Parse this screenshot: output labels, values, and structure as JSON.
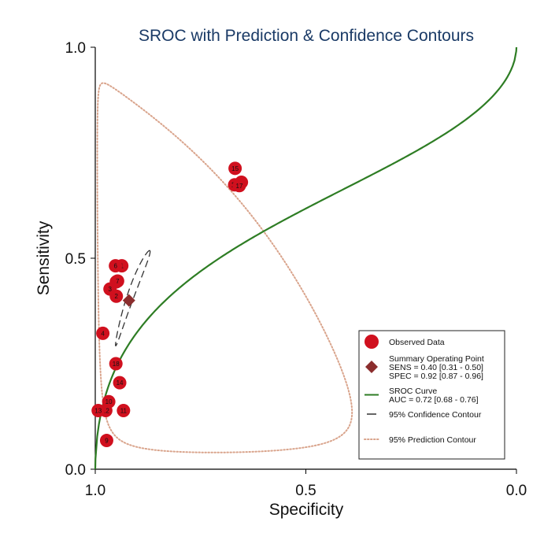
{
  "chart_data": {
    "type": "scatter",
    "title": "SROC with Prediction & Confidence Contours",
    "xlabel": "Specificity",
    "ylabel": "Sensitivity",
    "x_reversed": true,
    "xlim": [
      1.0,
      0.0
    ],
    "ylim": [
      0.0,
      1.0
    ],
    "xticks": [
      "1.0",
      "0.5",
      "0.0"
    ],
    "yticks": [
      "0.0",
      "0.5",
      "1.0"
    ],
    "grid": false,
    "legend_position": "bottom-right",
    "observed_data": [
      {
        "label": "1",
        "spec": 0.937,
        "sens": 0.482
      },
      {
        "label": "2",
        "spec": 0.95,
        "sens": 0.41
      },
      {
        "label": "3",
        "spec": 0.965,
        "sens": 0.427
      },
      {
        "label": "4",
        "spec": 0.982,
        "sens": 0.322
      },
      {
        "label": "5",
        "spec": 0.95,
        "sens": 0.444
      },
      {
        "label": "6",
        "spec": 0.952,
        "sens": 0.482
      },
      {
        "label": "7",
        "spec": 0.947,
        "sens": 0.446
      },
      {
        "label": "8",
        "spec": 0.653,
        "sens": 0.68
      },
      {
        "label": "9",
        "spec": 0.973,
        "sens": 0.068
      },
      {
        "label": "10",
        "spec": 0.968,
        "sens": 0.16
      },
      {
        "label": "11",
        "spec": 0.933,
        "sens": 0.139
      },
      {
        "label": "12",
        "spec": 0.975,
        "sens": 0.139
      },
      {
        "label": "13",
        "spec": 0.993,
        "sens": 0.139
      },
      {
        "label": "14",
        "spec": 0.942,
        "sens": 0.205
      },
      {
        "label": "15",
        "spec": 0.668,
        "sens": 0.713
      },
      {
        "label": "16",
        "spec": 0.669,
        "sens": 0.674
      },
      {
        "label": "17",
        "spec": 0.658,
        "sens": 0.672
      },
      {
        "label": "18",
        "spec": 0.951,
        "sens": 0.25
      }
    ],
    "summary_point": {
      "spec": 0.92,
      "sens": 0.4
    },
    "sroc_curve": {
      "auc": 0.72
    },
    "confidence_contour_center": {
      "spec": 0.92,
      "sens": 0.4
    },
    "prediction_contour_center": {
      "spec": 0.92,
      "sens": 0.4
    },
    "legend": [
      {
        "key": "observed",
        "lines": [
          "Observed Data"
        ]
      },
      {
        "key": "summary",
        "lines": [
          "Summary Operating Point",
          "SENS = 0.40 [0.31 - 0.50]",
          "SPEC = 0.92 [0.87 - 0.96]"
        ]
      },
      {
        "key": "sroc",
        "lines": [
          "SROC Curve",
          "AUC = 0.72 [0.68 - 0.76]"
        ]
      },
      {
        "key": "confidence",
        "lines": [
          "95% Confidence Contour"
        ]
      },
      {
        "key": "prediction",
        "lines": [
          "95% Prediction Contour"
        ]
      }
    ]
  },
  "colors": {
    "observed": "#d0101e",
    "summary": "#8b2d2d",
    "sroc": "#2e7d24",
    "confidence": "#333333",
    "prediction": "#d9a48c",
    "title": "#1a3a66"
  }
}
